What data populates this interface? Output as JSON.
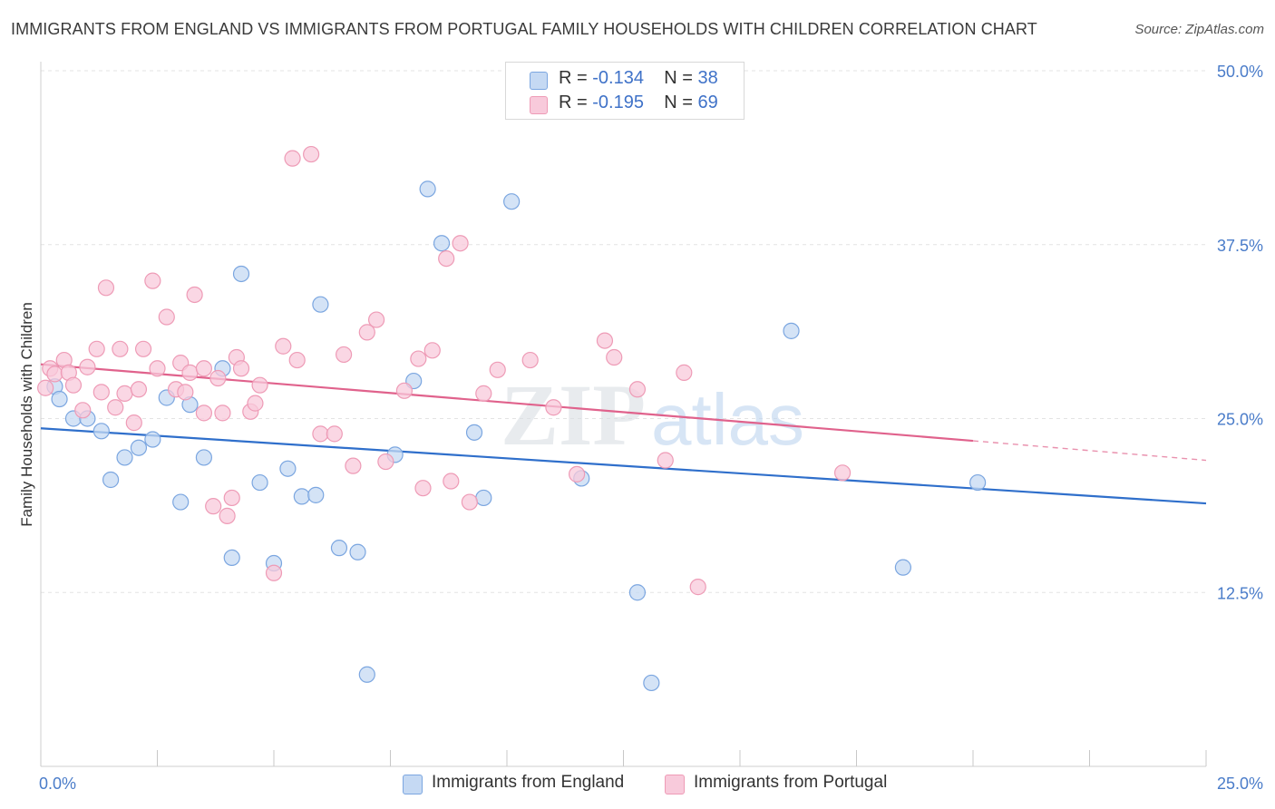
{
  "title": "IMMIGRANTS FROM ENGLAND VS IMMIGRANTS FROM PORTUGAL FAMILY HOUSEHOLDS WITH CHILDREN CORRELATION CHART",
  "source": "Source: ZipAtlas.com",
  "watermark": {
    "zip": "ZIP",
    "atlas": "atlas"
  },
  "legend": {
    "england": {
      "r_label": "R =",
      "r_value": "-0.134",
      "n_label": "N =",
      "n_value": "38"
    },
    "portugal": {
      "r_label": "R =",
      "r_value": "-0.195",
      "n_label": "N =",
      "n_value": "69"
    }
  },
  "chart_data": {
    "type": "scatter",
    "title": "IMMIGRANTS FROM ENGLAND VS IMMIGRANTS FROM PORTUGAL FAMILY HOUSEHOLDS WITH CHILDREN CORRELATION CHART",
    "xlabel": "",
    "ylabel": "Family Households with Children",
    "xlim": [
      0,
      25
    ],
    "ylim": [
      0,
      50
    ],
    "x_tick_labels": [
      "0.0%",
      "25.0%"
    ],
    "y_ticks": [
      12.5,
      25.0,
      37.5,
      50.0
    ],
    "y_tick_labels": [
      "12.5%",
      "25.0%",
      "37.5%",
      "50.0%"
    ],
    "grid": true,
    "legend_position": "top-center",
    "series": [
      {
        "name": "Immigrants from England",
        "color": "#7ba6e0",
        "fill": "#c5d9f3",
        "line_color": "#2f6fcb",
        "trend": {
          "x": [
            0,
            25
          ],
          "y": [
            24.3,
            18.9
          ]
        },
        "points": [
          [
            0.3,
            27.3
          ],
          [
            0.4,
            26.4
          ],
          [
            0.7,
            25.0
          ],
          [
            1.0,
            25.0
          ],
          [
            1.3,
            24.1
          ],
          [
            1.5,
            20.6
          ],
          [
            1.8,
            22.2
          ],
          [
            2.1,
            22.9
          ],
          [
            2.4,
            23.5
          ],
          [
            2.7,
            26.5
          ],
          [
            3.0,
            19.0
          ],
          [
            3.2,
            26.0
          ],
          [
            3.5,
            22.2
          ],
          [
            3.9,
            28.6
          ],
          [
            4.1,
            15.0
          ],
          [
            4.3,
            35.4
          ],
          [
            4.7,
            20.4
          ],
          [
            5.0,
            14.6
          ],
          [
            5.3,
            21.4
          ],
          [
            5.6,
            19.4
          ],
          [
            5.9,
            19.5
          ],
          [
            6.0,
            33.2
          ],
          [
            6.4,
            15.7
          ],
          [
            6.8,
            15.4
          ],
          [
            7.0,
            6.6
          ],
          [
            7.6,
            22.4
          ],
          [
            8.0,
            27.7
          ],
          [
            8.3,
            41.5
          ],
          [
            8.6,
            37.6
          ],
          [
            9.3,
            24.0
          ],
          [
            9.5,
            19.3
          ],
          [
            10.1,
            40.6
          ],
          [
            11.6,
            20.7
          ],
          [
            12.8,
            12.5
          ],
          [
            13.1,
            6.0
          ],
          [
            16.1,
            31.3
          ],
          [
            18.5,
            14.3
          ],
          [
            20.1,
            20.4
          ]
        ]
      },
      {
        "name": "Immigrants from Portugal",
        "color": "#ee9bb6",
        "fill": "#f8cadb",
        "line_color": "#e0628c",
        "trend": {
          "x": [
            0,
            20
          ],
          "y": [
            28.9,
            23.4
          ]
        },
        "trend_dashed": {
          "x": [
            20,
            25
          ],
          "y": [
            23.4,
            22.0
          ]
        },
        "points": [
          [
            0.1,
            27.2
          ],
          [
            0.2,
            28.6
          ],
          [
            0.3,
            28.2
          ],
          [
            0.5,
            29.2
          ],
          [
            0.6,
            28.3
          ],
          [
            0.7,
            27.4
          ],
          [
            0.9,
            25.6
          ],
          [
            1.0,
            28.7
          ],
          [
            1.2,
            30.0
          ],
          [
            1.3,
            26.9
          ],
          [
            1.4,
            34.4
          ],
          [
            1.6,
            25.8
          ],
          [
            1.7,
            30.0
          ],
          [
            1.8,
            26.8
          ],
          [
            2.0,
            24.7
          ],
          [
            2.1,
            27.1
          ],
          [
            2.2,
            30.0
          ],
          [
            2.4,
            34.9
          ],
          [
            2.5,
            28.6
          ],
          [
            2.7,
            32.3
          ],
          [
            2.9,
            27.1
          ],
          [
            3.0,
            29.0
          ],
          [
            3.1,
            26.9
          ],
          [
            3.2,
            28.3
          ],
          [
            3.3,
            33.9
          ],
          [
            3.5,
            28.6
          ],
          [
            3.5,
            25.4
          ],
          [
            3.7,
            18.7
          ],
          [
            3.8,
            27.9
          ],
          [
            3.9,
            25.4
          ],
          [
            4.0,
            18.0
          ],
          [
            4.1,
            19.3
          ],
          [
            4.2,
            29.4
          ],
          [
            4.3,
            28.6
          ],
          [
            4.5,
            25.5
          ],
          [
            4.6,
            26.1
          ],
          [
            4.7,
            27.4
          ],
          [
            5.0,
            13.9
          ],
          [
            5.2,
            30.2
          ],
          [
            5.4,
            43.7
          ],
          [
            5.5,
            29.2
          ],
          [
            5.8,
            44.0
          ],
          [
            6.0,
            23.9
          ],
          [
            6.3,
            23.9
          ],
          [
            6.5,
            29.6
          ],
          [
            6.7,
            21.6
          ],
          [
            7.0,
            31.2
          ],
          [
            7.2,
            32.1
          ],
          [
            7.4,
            21.9
          ],
          [
            7.8,
            27.0
          ],
          [
            8.1,
            29.3
          ],
          [
            8.2,
            20.0
          ],
          [
            8.4,
            29.9
          ],
          [
            8.7,
            36.5
          ],
          [
            8.8,
            20.5
          ],
          [
            9.0,
            37.6
          ],
          [
            9.2,
            19.0
          ],
          [
            9.5,
            26.8
          ],
          [
            9.8,
            28.5
          ],
          [
            10.5,
            29.2
          ],
          [
            11.0,
            25.8
          ],
          [
            11.5,
            21.0
          ],
          [
            12.1,
            30.6
          ],
          [
            12.3,
            29.4
          ],
          [
            12.8,
            27.1
          ],
          [
            13.4,
            22.0
          ],
          [
            13.8,
            28.3
          ],
          [
            14.1,
            12.9
          ],
          [
            17.2,
            21.1
          ]
        ]
      }
    ]
  },
  "bottom_legend": [
    {
      "label": "Immigrants from England",
      "fill": "#c5d9f3",
      "border": "#7ba6e0"
    },
    {
      "label": "Immigrants from Portugal",
      "fill": "#f8cadb",
      "border": "#ee9bb6"
    }
  ]
}
